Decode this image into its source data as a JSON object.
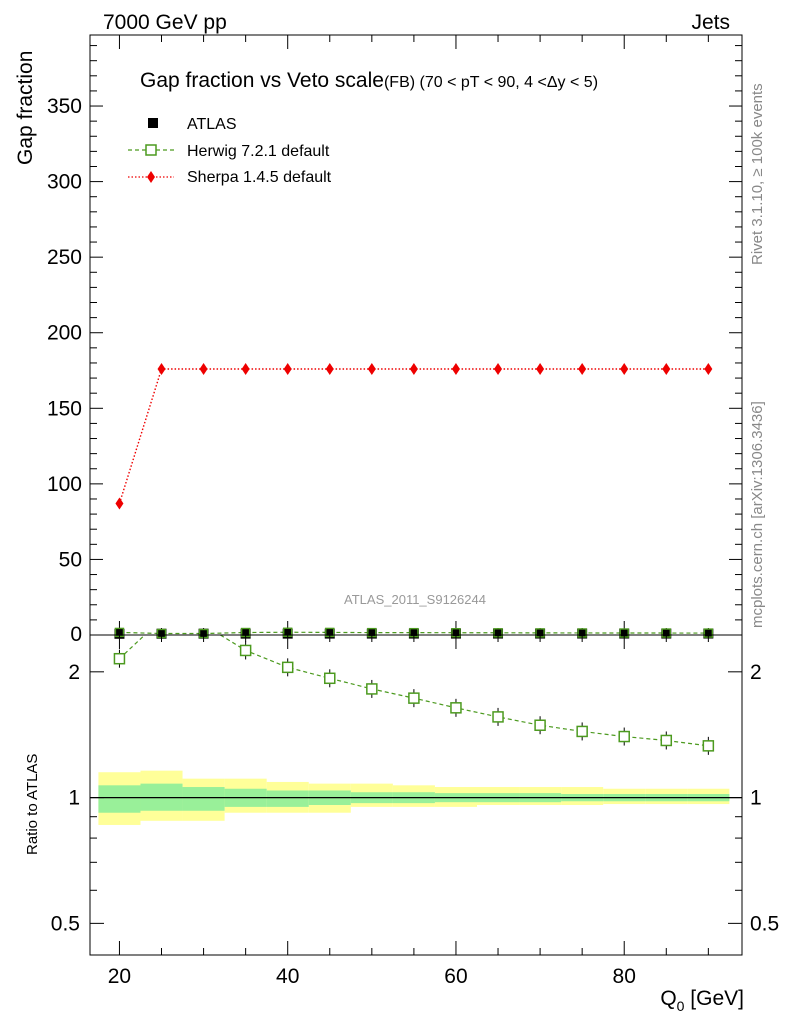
{
  "header": {
    "left": "7000 GeV pp",
    "right": "Jets"
  },
  "side_text": {
    "rivet": "Rivet 3.1.10, ≥ 100k events",
    "url": "mcplots.cern.ch [arXiv:1306.3436]"
  },
  "colors": {
    "atlas": "#000000",
    "herwig": "#4c9a1f",
    "sherpa": "#ee0000",
    "band_inner": "#99f099",
    "band_outer": "#ffff99"
  },
  "chart_data": [
    {
      "type": "scatter",
      "panel": "main",
      "title_main": "Gap fraction vs Veto scale",
      "title_sub": "(FB) (70 < pT <  90, 4 <Δy < 5)",
      "ylabel": "Gap fraction",
      "ylim": [
        0,
        397
      ],
      "yticks": [
        "50",
        "100",
        "150",
        "200",
        "250",
        "300",
        "350"
      ],
      "ytick_values": [
        50,
        100,
        150,
        200,
        250,
        300,
        350
      ],
      "yzero_label": "0",
      "watermark": "ATLAS_2011_S9126244",
      "legend_position": "top-left",
      "x": [
        20,
        25,
        30,
        35,
        40,
        45,
        50,
        55,
        60,
        65,
        70,
        75,
        80,
        85,
        90
      ],
      "series": [
        {
          "name": "ATLAS",
          "values": [
            0.8,
            0.85,
            0.88,
            0.9,
            0.91,
            0.92,
            0.93,
            0.94,
            0.94,
            0.95,
            0.95,
            0.96,
            0.96,
            0.96,
            0.97
          ]
        },
        {
          "name": "Herwig 7.2.1 default",
          "values": [
            1.72,
            1.0,
            0.97,
            1.65,
            1.81,
            1.72,
            1.58,
            1.56,
            1.52,
            1.46,
            1.4,
            1.36,
            1.32,
            1.3,
            1.27
          ]
        },
        {
          "name": "Sherpa 1.4.5 default",
          "values": [
            87,
            176,
            176,
            176,
            176,
            176,
            176,
            176,
            176,
            176,
            176,
            176,
            176,
            176,
            176
          ]
        }
      ]
    },
    {
      "type": "line",
      "panel": "ratio",
      "ylabel": "Ratio to ATLAS",
      "xlabel": "Q",
      "xlabel_sub": "0",
      "xlabel_unit": " [GeV]",
      "xlim": [
        16.5,
        94
      ],
      "ylim": [
        0.42,
        2.45
      ],
      "scale": "log",
      "xticks": [
        "20",
        "40",
        "60",
        "80"
      ],
      "xtick_values": [
        20,
        40,
        60,
        80
      ],
      "yticks": [
        "0.5",
        "1",
        "2"
      ],
      "ytick_values": [
        0.5,
        1,
        2
      ],
      "x": [
        20,
        35,
        40,
        45,
        50,
        55,
        60,
        65,
        70,
        75,
        80,
        85,
        90
      ],
      "series": [
        {
          "name": "Herwig 7.2.1 default / ATLAS",
          "values": [
            2.15,
            2.25,
            2.05,
            1.93,
            1.82,
            1.73,
            1.64,
            1.56,
            1.49,
            1.44,
            1.4,
            1.37,
            1.33
          ]
        }
      ],
      "bands": {
        "bins": [
          [
            17.5,
            22.5
          ],
          [
            22.5,
            27.5
          ],
          [
            27.5,
            32.5
          ],
          [
            32.5,
            37.5
          ],
          [
            37.5,
            42.5
          ],
          [
            42.5,
            47.5
          ],
          [
            47.5,
            52.5
          ],
          [
            52.5,
            57.5
          ],
          [
            57.5,
            62.5
          ],
          [
            62.5,
            67.5
          ],
          [
            67.5,
            72.5
          ],
          [
            72.5,
            77.5
          ],
          [
            77.5,
            82.5
          ],
          [
            82.5,
            87.5
          ],
          [
            87.5,
            92.5
          ]
        ],
        "inner": [
          [
            0.92,
            1.07
          ],
          [
            0.93,
            1.08
          ],
          [
            0.93,
            1.06
          ],
          [
            0.95,
            1.05
          ],
          [
            0.95,
            1.04
          ],
          [
            0.96,
            1.04
          ],
          [
            0.97,
            1.03
          ],
          [
            0.97,
            1.03
          ],
          [
            0.975,
            1.025
          ],
          [
            0.975,
            1.025
          ],
          [
            0.975,
            1.025
          ],
          [
            0.98,
            1.02
          ],
          [
            0.98,
            1.02
          ],
          [
            0.98,
            1.02
          ],
          [
            0.98,
            1.02
          ]
        ],
        "outer": [
          [
            0.86,
            1.15
          ],
          [
            0.88,
            1.16
          ],
          [
            0.88,
            1.11
          ],
          [
            0.92,
            1.11
          ],
          [
            0.92,
            1.09
          ],
          [
            0.92,
            1.08
          ],
          [
            0.95,
            1.08
          ],
          [
            0.95,
            1.07
          ],
          [
            0.95,
            1.06
          ],
          [
            0.96,
            1.06
          ],
          [
            0.96,
            1.06
          ],
          [
            0.96,
            1.06
          ],
          [
            0.965,
            1.05
          ],
          [
            0.965,
            1.05
          ],
          [
            0.965,
            1.05
          ]
        ]
      }
    }
  ]
}
